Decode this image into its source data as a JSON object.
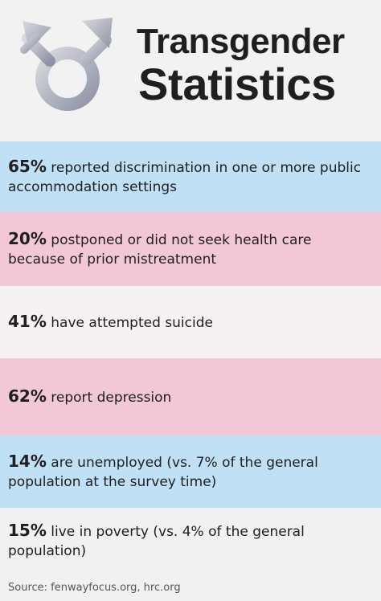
{
  "header": {
    "title_line1": "Transgender",
    "title_line2": "Statistics"
  },
  "stats": [
    {
      "percent": "65%",
      "text": "reported discrimination in one or more public accommodation settings",
      "color": "#bfe0f5"
    },
    {
      "percent": "20%",
      "text": "postponed or did not seek health care because of prior mistreatment",
      "color": "#f2c8d6"
    },
    {
      "percent": "41%",
      "text": "have attempted suicide",
      "color": "#f6f2f4"
    },
    {
      "percent": "62%",
      "text": "report depression",
      "color": "#f2c8d6"
    },
    {
      "percent": "14%",
      "text": "are unemployed (vs. 7% of the general population at the survey time)",
      "color": "#bfe0f5"
    },
    {
      "percent": "15%",
      "text": "live in poverty (vs. 4% of the general population)",
      "color": "#f1f1f1"
    }
  ],
  "footer": {
    "source": "Source: fenwayfocus.org, hrc.org"
  },
  "icons": {
    "symbol": "transgender-symbol-icon"
  }
}
